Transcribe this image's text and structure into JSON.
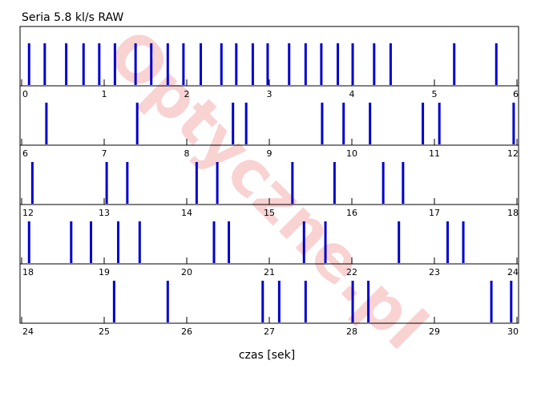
{
  "chart_data": {
    "type": "timeline",
    "title": "Seria 5.8 kl/s RAW",
    "xlabel": "czas [sek]",
    "watermark": "Optyczne.pl",
    "color": "#0000cc",
    "panels": [
      {
        "xlim": [
          0,
          6
        ],
        "xticks": [
          0,
          1,
          2,
          3,
          4,
          5,
          6
        ],
        "events": [
          0.09,
          0.28,
          0.54,
          0.75,
          0.94,
          1.13,
          1.38,
          1.57,
          1.77,
          1.96,
          2.17,
          2.42,
          2.6,
          2.8,
          2.98,
          3.24,
          3.44,
          3.63,
          3.83,
          4.01,
          4.27,
          4.47,
          5.24,
          5.75
        ]
      },
      {
        "xlim": [
          6,
          12
        ],
        "xticks": [
          6,
          7,
          8,
          9,
          10,
          11,
          12
        ],
        "events": [
          6.3,
          7.4,
          8.56,
          8.72,
          9.64,
          9.9,
          10.22,
          10.86,
          11.06,
          11.96
        ]
      },
      {
        "xlim": [
          12,
          18
        ],
        "xticks": [
          12,
          13,
          14,
          15,
          16,
          17,
          18
        ],
        "events": [
          12.13,
          13.03,
          13.28,
          14.12,
          14.37,
          15.28,
          15.79,
          16.38,
          16.62
        ]
      },
      {
        "xlim": [
          18,
          24
        ],
        "xticks": [
          18,
          19,
          20,
          21,
          22,
          23,
          24
        ],
        "events": [
          18.09,
          18.6,
          18.84,
          19.17,
          19.43,
          20.33,
          20.51,
          21.42,
          21.68,
          22.57,
          23.16,
          23.35
        ]
      },
      {
        "xlim": [
          24,
          30
        ],
        "xticks": [
          24,
          25,
          26,
          27,
          28,
          29,
          30
        ],
        "events": [
          25.12,
          25.77,
          26.92,
          27.12,
          27.44,
          28.01,
          28.2,
          29.69,
          29.93
        ]
      }
    ]
  }
}
